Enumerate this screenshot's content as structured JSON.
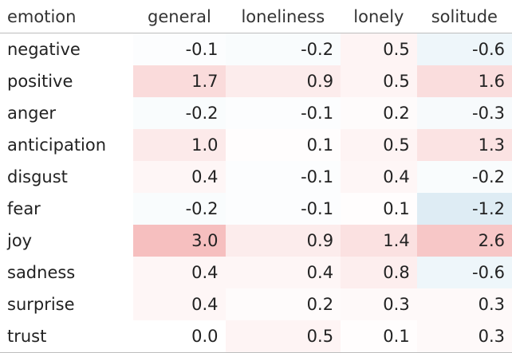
{
  "chart_data": {
    "type": "heatmap",
    "row_header": "emotion",
    "columns": [
      "general",
      "loneliness",
      "lonely",
      "solitude"
    ],
    "rows": [
      "negative",
      "positive",
      "anger",
      "anticipation",
      "disgust",
      "fear",
      "joy",
      "sadness",
      "surprise",
      "trust"
    ],
    "values": [
      [
        "-0.1",
        "-0.2",
        "0.5",
        "-0.6"
      ],
      [
        "1.7",
        "0.9",
        "0.5",
        "1.6"
      ],
      [
        "-0.2",
        "-0.1",
        "0.2",
        "-0.3"
      ],
      [
        "1.0",
        "0.1",
        "0.5",
        "1.3"
      ],
      [
        "0.4",
        "-0.1",
        "0.4",
        "-0.2"
      ],
      [
        "-0.2",
        "-0.1",
        "0.1",
        "-1.2"
      ],
      [
        "3.0",
        "0.9",
        "1.4",
        "2.6"
      ],
      [
        "0.4",
        "0.4",
        "0.8",
        "-0.6"
      ],
      [
        "0.4",
        "0.2",
        "0.3",
        "0.3"
      ],
      [
        "0.0",
        "0.5",
        "0.1",
        "0.3"
      ]
    ],
    "color_scale": {
      "negative_color": "#67a9cf",
      "neutral_color": "#ffffff",
      "positive_color": "#ef8a8a",
      "max_abs": 3.0
    }
  }
}
